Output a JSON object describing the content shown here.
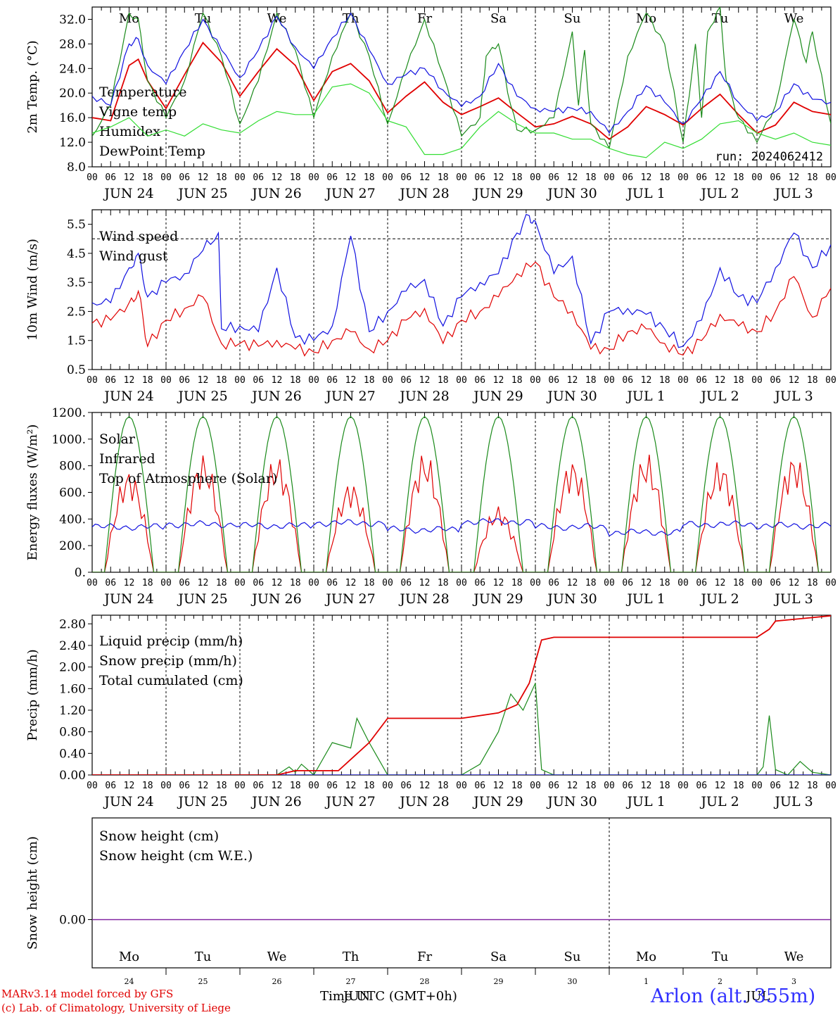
{
  "colors": {
    "red": "#e00000",
    "green": "#1a8a1a",
    "blue": "#1010e0",
    "lightgreen": "#33dd33",
    "purple": "#8020a0",
    "weekend": "#e00000"
  },
  "days": {
    "week": [
      "Mo",
      "Tu",
      "We",
      "Th",
      "Fr",
      "Sa",
      "Su",
      "Mo",
      "Tu",
      "We"
    ],
    "weekend_index": [
      5,
      6
    ],
    "dates": [
      "JUN 24",
      "JUN 25",
      "JUN 26",
      "JUN 27",
      "JUN 28",
      "JUN 29",
      "JUN 30",
      "JUL  1",
      "JUL  2",
      "JUL  3"
    ],
    "hours": [
      "00",
      "06",
      "12",
      "18"
    ],
    "daynums": [
      "24",
      "25",
      "26",
      "27",
      "28",
      "29",
      "30",
      "1",
      "2",
      "3"
    ]
  },
  "footer": {
    "line1": "MARv3.14 model forced by GFS",
    "line2": "(c) Lab. of Climatology, University of Liege",
    "time_label": "Time UTC (GMT+0h)",
    "month_label": "JUN",
    "month_label2": "JUL",
    "station": "Arlon (alt. 355m)"
  },
  "chart_data": [
    {
      "type": "line",
      "ylabel": "2m Temp. (°C)",
      "ylim": [
        8,
        34
      ],
      "yticks": [
        "8.0",
        "12.0",
        "16.0",
        "20.0",
        "24.0",
        "28.0",
        "32.0"
      ],
      "annotation": "run: 2024062412",
      "x_unit": "hours since JUN 24 00 UTC",
      "series": [
        {
          "name": "Temperature",
          "color": "red",
          "x": [
            0,
            6,
            12,
            15,
            18,
            24,
            30,
            36,
            42,
            48,
            54,
            60,
            66,
            72,
            78,
            84,
            90,
            96,
            102,
            108,
            114,
            120,
            126,
            132,
            138,
            144,
            150,
            156,
            162,
            168,
            174,
            180,
            186,
            192,
            198,
            204,
            210,
            216,
            222,
            228,
            234,
            240
          ],
          "values": [
            16,
            15.5,
            24.5,
            25.5,
            22,
            17.5,
            23,
            28.2,
            25,
            19.5,
            23.5,
            27.2,
            24.5,
            18.8,
            23.5,
            24.8,
            22,
            16.8,
            19.5,
            21.8,
            18.5,
            16.5,
            17.8,
            19.2,
            16.8,
            14.5,
            15,
            16.2,
            15,
            12.5,
            14.5,
            17.8,
            16.5,
            14.8,
            17.5,
            19.8,
            16.5,
            13.5,
            14.8,
            18.5,
            17,
            16.5
          ]
        },
        {
          "name": "Vigne temp",
          "color": "green",
          "x": [
            0,
            6,
            12,
            15,
            18,
            24,
            30,
            36,
            42,
            48,
            54,
            60,
            66,
            72,
            78,
            84,
            90,
            96,
            102,
            108,
            114,
            120,
            126,
            128,
            132,
            136,
            138,
            144,
            150,
            156,
            158,
            160,
            162,
            168,
            174,
            180,
            186,
            192,
            196,
            198,
            200,
            204,
            206,
            210,
            216,
            222,
            228,
            232,
            234,
            240
          ],
          "values": [
            13,
            18,
            33,
            32,
            22,
            16,
            22,
            33,
            26,
            15,
            22,
            33,
            27,
            16,
            26,
            33,
            26,
            15,
            24,
            32,
            23,
            13,
            16,
            26,
            28,
            18,
            14,
            14,
            16,
            30,
            18,
            27,
            15,
            11,
            26,
            33,
            28,
            12,
            28,
            16,
            30,
            34,
            22,
            16,
            12,
            18,
            32,
            25,
            30,
            15
          ]
        },
        {
          "name": "Humidex",
          "color": "blue",
          "x": [
            0,
            6,
            12,
            15,
            18,
            24,
            30,
            36,
            42,
            48,
            54,
            60,
            66,
            72,
            78,
            84,
            90,
            96,
            102,
            108,
            114,
            120,
            126,
            132,
            138,
            144,
            150,
            156,
            162,
            168,
            174,
            180,
            186,
            192,
            198,
            204,
            210,
            216,
            222,
            228,
            234,
            240
          ],
          "values": [
            19.5,
            18,
            28,
            28.8,
            24.5,
            21.5,
            27,
            32,
            27,
            22.5,
            27,
            32.5,
            27.5,
            24,
            29,
            33,
            27,
            21.5,
            23,
            24,
            20.5,
            17.8,
            19.5,
            24.8,
            19.5,
            17.5,
            17,
            17.5,
            17,
            13.5,
            17,
            21.2,
            18.5,
            15,
            19,
            23.5,
            18.5,
            15.5,
            17,
            21.5,
            19,
            18.5
          ]
        },
        {
          "name": "DewPoint Temp",
          "color": "lightgreen",
          "x": [
            0,
            6,
            12,
            18,
            24,
            30,
            36,
            42,
            48,
            54,
            60,
            66,
            72,
            78,
            84,
            90,
            96,
            102,
            108,
            114,
            120,
            126,
            132,
            138,
            144,
            150,
            156,
            162,
            168,
            174,
            180,
            186,
            192,
            198,
            204,
            210,
            216,
            222,
            228,
            234,
            240
          ],
          "values": [
            13.5,
            14.5,
            16,
            13,
            14,
            13,
            15,
            14,
            13.5,
            15.5,
            17,
            16.5,
            16.5,
            21,
            21.5,
            20,
            15.5,
            14.5,
            10,
            10,
            11,
            14.5,
            17,
            15,
            13.5,
            13.5,
            12.5,
            12.5,
            11,
            10,
            9.5,
            12,
            11,
            12.5,
            15,
            15.5,
            13.5,
            12.5,
            13.5,
            12,
            11.5
          ]
        }
      ]
    },
    {
      "type": "line",
      "ylabel": "10m Wind (m/s)",
      "ylim": [
        0.5,
        6.0
      ],
      "yticks": [
        "0.5",
        "1.5",
        "2.5",
        "3.5",
        "4.5",
        "5.5"
      ],
      "reference_line": 5.0,
      "series": [
        {
          "name": "Wind speed",
          "color": "red",
          "x": [
            0,
            6,
            12,
            15,
            18,
            24,
            30,
            36,
            42,
            48,
            54,
            60,
            66,
            72,
            78,
            84,
            90,
            96,
            102,
            108,
            114,
            120,
            126,
            132,
            138,
            144,
            150,
            156,
            162,
            168,
            174,
            180,
            186,
            192,
            198,
            204,
            210,
            216,
            222,
            228,
            234,
            240
          ],
          "values": [
            2.1,
            2.2,
            2.8,
            3.2,
            1.3,
            2.2,
            2.6,
            3.0,
            1.4,
            1.4,
            1.3,
            1.5,
            1.2,
            1.1,
            1.5,
            1.8,
            1.2,
            1.5,
            2.2,
            2.6,
            1.4,
            2.2,
            2.5,
            3.0,
            3.8,
            4.2,
            3.0,
            2.5,
            1.2,
            1.2,
            1.8,
            1.9,
            1.4,
            1.0,
            1.5,
            2.4,
            2.0,
            1.8,
            2.5,
            3.7,
            2.3,
            3.3
          ]
        },
        {
          "name": "Wind gust",
          "color": "blue",
          "x": [
            0,
            6,
            12,
            15,
            18,
            24,
            30,
            36,
            41,
            42,
            48,
            54,
            60,
            66,
            72,
            78,
            84,
            90,
            96,
            102,
            108,
            114,
            120,
            126,
            132,
            138,
            142,
            144,
            150,
            156,
            162,
            168,
            174,
            180,
            186,
            192,
            198,
            204,
            210,
            216,
            222,
            228,
            234,
            240
          ],
          "values": [
            2.8,
            2.8,
            4.0,
            4.5,
            3.0,
            3.5,
            3.8,
            4.6,
            5.2,
            1.9,
            2.0,
            1.8,
            4.0,
            1.6,
            1.5,
            2.0,
            5.1,
            1.8,
            2.5,
            3.2,
            3.6,
            2.0,
            3.0,
            3.5,
            3.8,
            5.2,
            5.8,
            5.6,
            3.8,
            4.4,
            1.4,
            2.5,
            2.6,
            2.4,
            1.9,
            1.3,
            2.2,
            4.0,
            3.0,
            2.8,
            4.0,
            5.2,
            4.0,
            4.8
          ]
        }
      ]
    },
    {
      "type": "line",
      "ylabel": "Energy fluxes (W/m²)",
      "ylim": [
        0,
        1200
      ],
      "yticks": [
        "0.",
        "200.",
        "400.",
        "600.",
        "800.",
        "1000.",
        "1200."
      ],
      "series": [
        {
          "name": "Solar",
          "color": "red",
          "daily_peak": [
            780,
            890,
            880,
            690,
            910,
            500,
            860,
            900,
            850,
            900
          ]
        },
        {
          "name": "Infrared",
          "color": "blue",
          "values_by_day": [
            340,
            360,
            350,
            370,
            320,
            380,
            340,
            300,
            360,
            350
          ]
        },
        {
          "name": "Top of Atmosphere (Solar)",
          "color": "green",
          "daily_peak": [
            1170,
            1170,
            1170,
            1170,
            1170,
            1170,
            1170,
            1170,
            1170,
            1170
          ]
        }
      ]
    },
    {
      "type": "line",
      "ylabel": "Precip (mm/h)",
      "ylim": [
        0,
        2.96
      ],
      "yticks": [
        "0.00",
        "0.40",
        "0.80",
        "1.20",
        "1.60",
        "2.00",
        "2.40",
        "2.80"
      ],
      "series": [
        {
          "name": "Liquid precip (mm/h)",
          "color": "green",
          "x": [
            0,
            60,
            64,
            66,
            68,
            72,
            78,
            84,
            86,
            90,
            92,
            96,
            100,
            120,
            126,
            132,
            136,
            140,
            144,
            146,
            150,
            160,
            216,
            218,
            220,
            222,
            226,
            230,
            234,
            240
          ],
          "values": [
            0,
            0,
            0.15,
            0.05,
            0.2,
            0,
            0.6,
            0.5,
            1.05,
            0.6,
            0.4,
            0,
            0,
            0,
            0.2,
            0.8,
            1.5,
            1.2,
            1.7,
            0.1,
            0,
            0,
            0,
            0.15,
            1.1,
            0.1,
            0,
            0.25,
            0.05,
            0
          ]
        },
        {
          "name": "Snow precip (mm/h)",
          "color": "blue",
          "x": [
            0,
            240
          ],
          "values": [
            0,
            0
          ]
        },
        {
          "name": "Total cumulated (cm)",
          "color": "red",
          "x": [
            0,
            60,
            66,
            72,
            80,
            90,
            96,
            120,
            132,
            138,
            142,
            146,
            150,
            156,
            204,
            216,
            220,
            222,
            240
          ],
          "values": [
            0,
            0,
            0.08,
            0.08,
            0.08,
            0.6,
            1.05,
            1.05,
            1.15,
            1.3,
            1.7,
            2.5,
            2.55,
            2.55,
            2.55,
            2.55,
            2.7,
            2.85,
            2.95
          ]
        }
      ]
    },
    {
      "type": "line",
      "ylabel": "Snow height (cm)",
      "yticks": [
        "0.00"
      ],
      "series": [
        {
          "name": "Snow height (cm)",
          "color": "red",
          "values": [
            0
          ]
        },
        {
          "name": "Snow height (cm W.E.)",
          "color": "blue",
          "values": [
            0
          ]
        }
      ]
    }
  ]
}
